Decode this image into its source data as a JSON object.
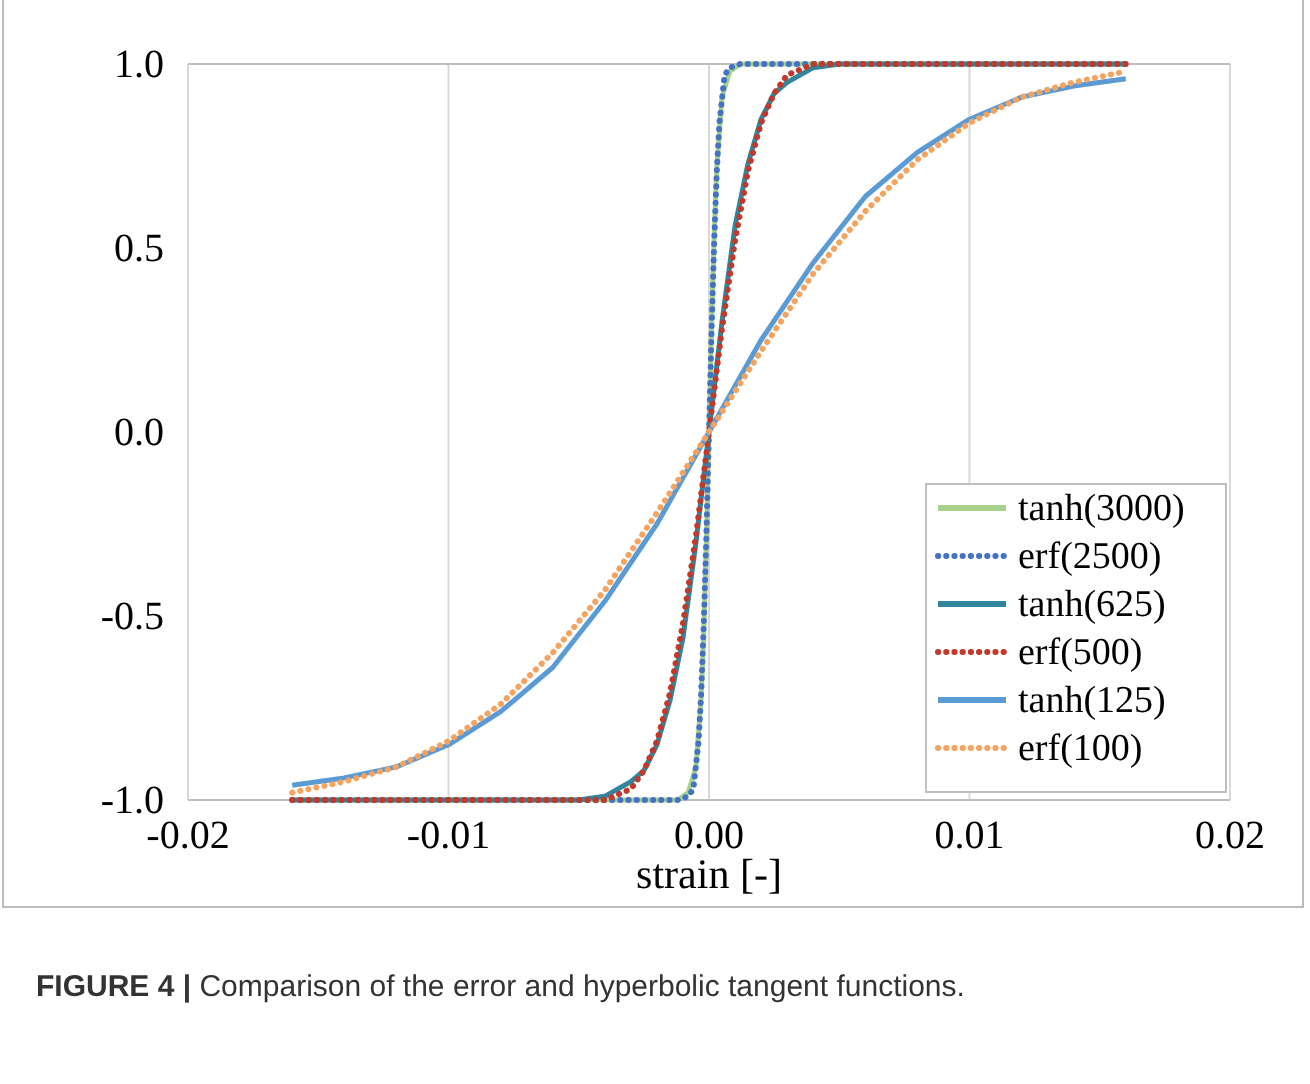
{
  "chart_data": {
    "type": "line",
    "xlabel": "strain [-]",
    "xlim": [
      -0.02,
      0.02
    ],
    "ylim": [
      -1,
      1
    ],
    "xticks": [
      {
        "value": -0.02,
        "label": "-0.02"
      },
      {
        "value": -0.01,
        "label": "-0.01"
      },
      {
        "value": 0,
        "label": "0.00"
      },
      {
        "value": 0.01,
        "label": "0.01"
      },
      {
        "value": 0.02,
        "label": "0.02"
      }
    ],
    "yticks": [
      {
        "value": -1,
        "label": "-1.0"
      },
      {
        "value": -0.5,
        "label": "-0.5"
      },
      {
        "value": 0,
        "label": "0.0"
      },
      {
        "value": 0.5,
        "label": "0.5"
      },
      {
        "value": 1,
        "label": "1.0"
      }
    ],
    "grid": "x",
    "legend": "bottom right",
    "marker": "none",
    "annotations": [
      "FIGURE 4 | Comparison of the error and hyperbolic tangent functions."
    ],
    "series": [
      {
        "name": "tanh(3000)",
        "color": "#a9d18e",
        "line_style": "solid",
        "x": [
          -0.016,
          -0.0012,
          -0.0008,
          -0.0005,
          -0.0003,
          -0.0002,
          -0.0001,
          0,
          0.0001,
          0.0002,
          0.0003,
          0.0005,
          0.0008,
          0.0012,
          0.016
        ],
        "values": [
          -1,
          -1,
          -0.98,
          -0.91,
          -0.72,
          -0.54,
          -0.29,
          0,
          0.29,
          0.54,
          0.72,
          0.91,
          0.98,
          1,
          1
        ]
      },
      {
        "name": "erf(2500)",
        "color": "#4472c4",
        "line_style": "dotted",
        "x": [
          -0.016,
          -0.0012,
          -0.0008,
          -0.0006,
          -0.0004,
          -0.0003,
          -0.0002,
          -0.0001,
          0,
          0.0001,
          0.0002,
          0.0003,
          0.0004,
          0.0006,
          0.0008,
          0.0012,
          0.016
        ],
        "values": [
          -1,
          -1,
          -0.99,
          -0.97,
          -0.84,
          -0.71,
          -0.52,
          -0.28,
          0,
          0.28,
          0.52,
          0.71,
          0.84,
          0.97,
          0.99,
          1,
          1
        ]
      },
      {
        "name": "tanh(625)",
        "color": "#31859c",
        "line_style": "solid",
        "x": [
          -0.016,
          -0.005,
          -0.004,
          -0.003,
          -0.0025,
          -0.002,
          -0.0015,
          -0.001,
          -0.0005,
          0,
          0.0005,
          0.001,
          0.0015,
          0.002,
          0.0025,
          0.003,
          0.004,
          0.005,
          0.016
        ],
        "values": [
          -1,
          -1,
          -0.99,
          -0.95,
          -0.92,
          -0.85,
          -0.73,
          -0.56,
          -0.3,
          0,
          0.3,
          0.56,
          0.73,
          0.85,
          0.92,
          0.95,
          0.99,
          1,
          1
        ]
      },
      {
        "name": "erf(500)",
        "color": "#c0392b",
        "line_style": "dotted",
        "x": [
          -0.016,
          -0.005,
          -0.004,
          -0.003,
          -0.0025,
          -0.002,
          -0.0015,
          -0.001,
          -0.0005,
          0,
          0.0005,
          0.001,
          0.0015,
          0.002,
          0.0025,
          0.003,
          0.004,
          0.005,
          0.016
        ],
        "values": [
          -1,
          -1,
          -1,
          -0.97,
          -0.92,
          -0.84,
          -0.71,
          -0.52,
          -0.28,
          0,
          0.28,
          0.52,
          0.71,
          0.84,
          0.92,
          0.97,
          1,
          1,
          1
        ]
      },
      {
        "name": "tanh(125)",
        "color": "#5b9bd5",
        "line_style": "solid",
        "x": [
          -0.016,
          -0.014,
          -0.012,
          -0.01,
          -0.008,
          -0.006,
          -0.004,
          -0.002,
          0,
          0.002,
          0.004,
          0.006,
          0.008,
          0.01,
          0.012,
          0.014,
          0.016
        ],
        "values": [
          -0.96,
          -0.94,
          -0.91,
          -0.85,
          -0.76,
          -0.64,
          -0.46,
          -0.25,
          0,
          0.25,
          0.46,
          0.64,
          0.76,
          0.85,
          0.91,
          0.94,
          0.96
        ]
      },
      {
        "name": "erf(100)",
        "color": "#f4a460",
        "line_style": "dotted",
        "x": [
          -0.016,
          -0.014,
          -0.012,
          -0.01,
          -0.008,
          -0.006,
          -0.004,
          -0.002,
          0,
          0.002,
          0.004,
          0.006,
          0.008,
          0.01,
          0.012,
          0.014,
          0.016
        ],
        "values": [
          -0.98,
          -0.95,
          -0.91,
          -0.84,
          -0.74,
          -0.6,
          -0.43,
          -0.22,
          0,
          0.22,
          0.43,
          0.6,
          0.74,
          0.84,
          0.91,
          0.95,
          0.98
        ]
      }
    ]
  }
}
